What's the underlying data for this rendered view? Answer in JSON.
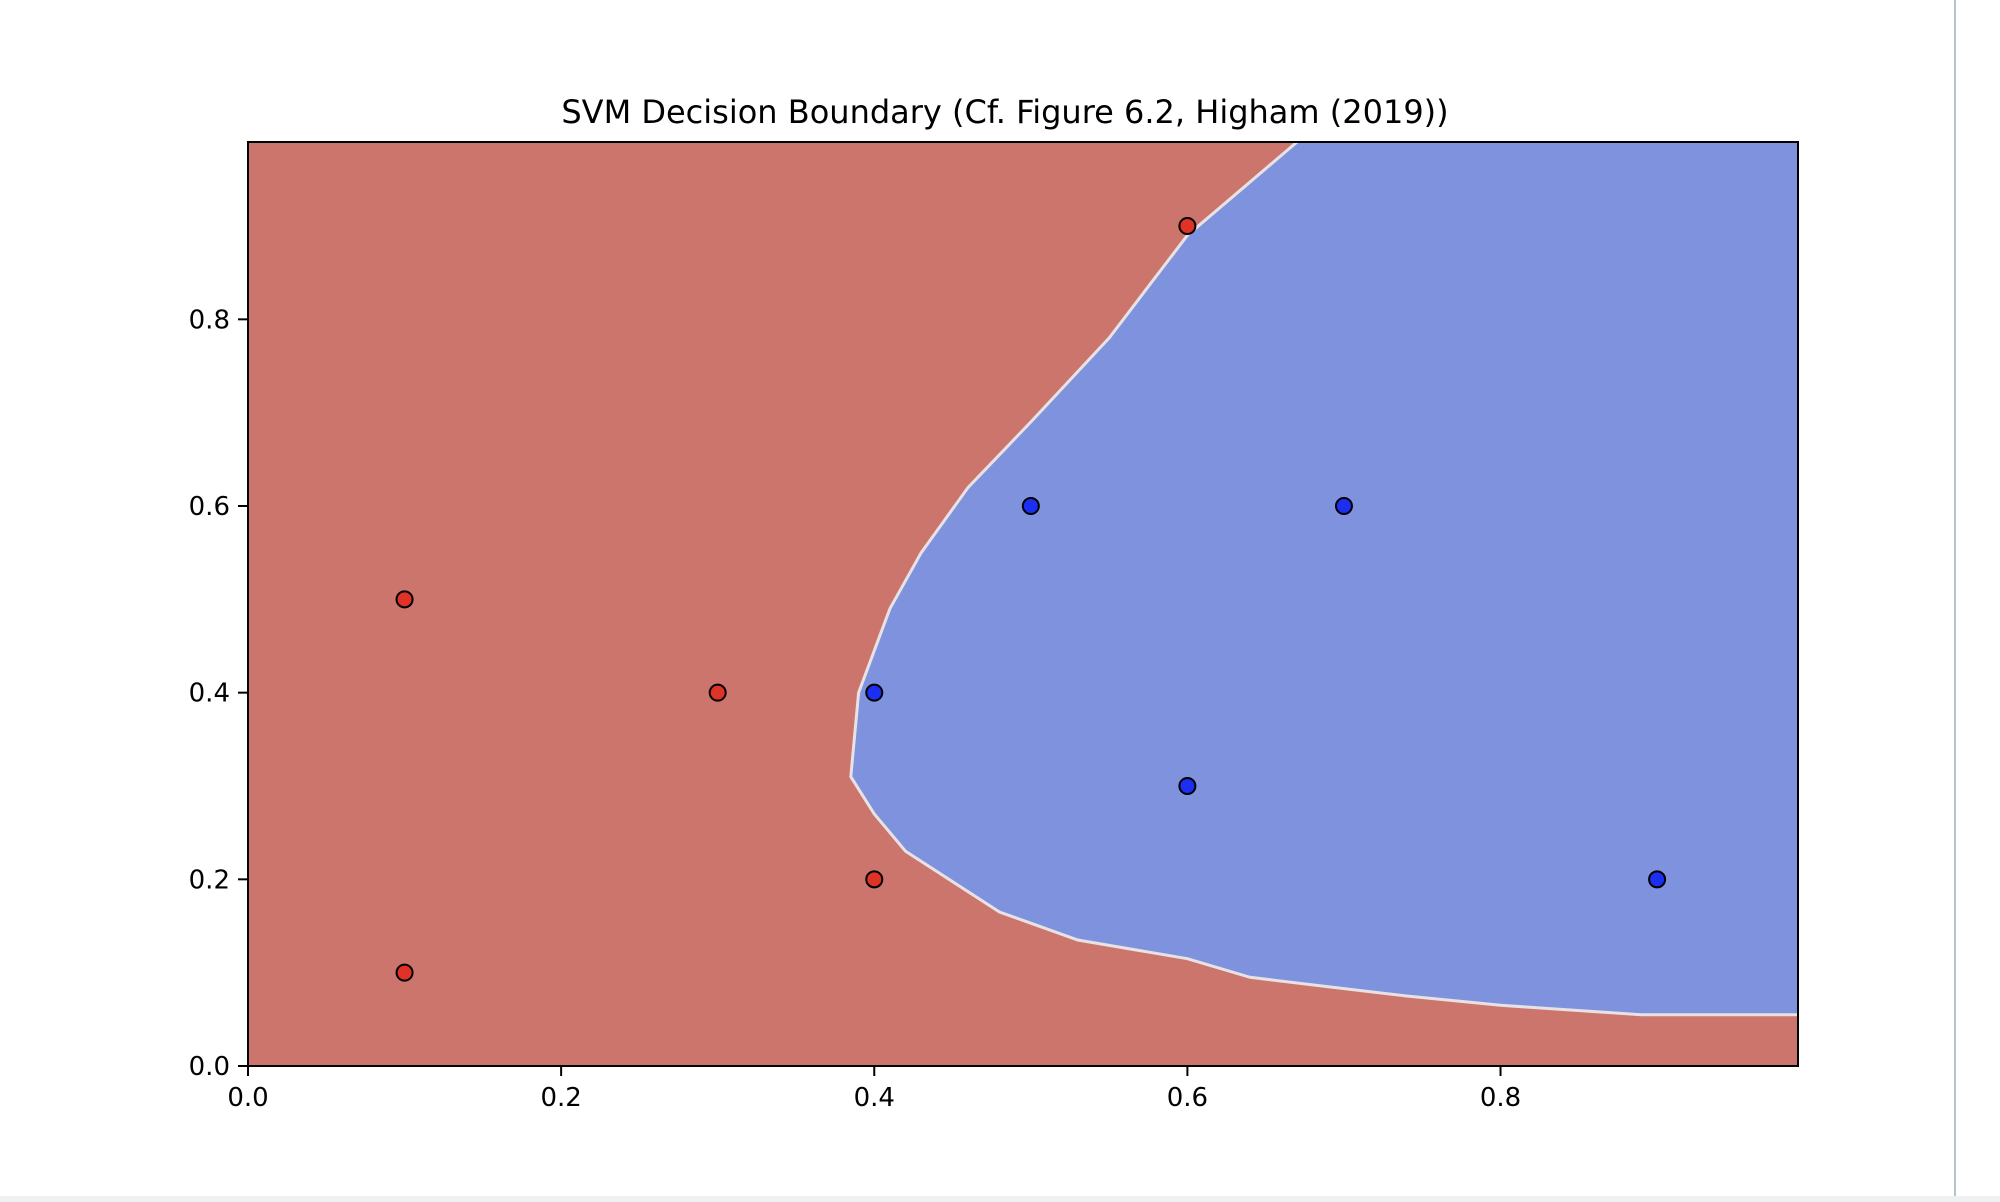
{
  "chart_data": {
    "type": "scatter",
    "title": "SVM Decision Boundary (Cf. Figure 6.2, Higham (2019))",
    "xlabel": "",
    "ylabel": "",
    "xlim": [
      0,
      0.99
    ],
    "ylim": [
      0,
      0.99
    ],
    "x_ticks": [
      "0.0",
      "0.2",
      "0.4",
      "0.6",
      "0.8"
    ],
    "y_ticks": [
      "0.0",
      "0.2",
      "0.4",
      "0.6",
      "0.8"
    ],
    "x_tick_values": [
      0,
      0.2,
      0.4,
      0.6,
      0.8
    ],
    "y_tick_values": [
      0,
      0.2,
      0.4,
      0.6,
      0.8
    ],
    "grid": false,
    "region_colors": {
      "red": "#cb756c",
      "blue": "#7f92de"
    },
    "series": [
      {
        "color": "#e03328",
        "points": [
          {
            "x": 0.1,
            "y": 0.1
          },
          {
            "x": 0.1,
            "y": 0.5
          },
          {
            "x": 0.3,
            "y": 0.4
          },
          {
            "x": 0.4,
            "y": 0.2
          },
          {
            "x": 0.6,
            "y": 0.9
          }
        ]
      },
      {
        "color": "#1c2ff0",
        "points": [
          {
            "x": 0.4,
            "y": 0.4
          },
          {
            "x": 0.5,
            "y": 0.6
          },
          {
            "x": 0.6,
            "y": 0.3
          },
          {
            "x": 0.7,
            "y": 0.6
          },
          {
            "x": 0.9,
            "y": 0.2
          }
        ]
      }
    ],
    "decision_boundary": [
      [
        0.67,
        0.99
      ],
      [
        0.6,
        0.89
      ],
      [
        0.55,
        0.78
      ],
      [
        0.5,
        0.69
      ],
      [
        0.46,
        0.62
      ],
      [
        0.43,
        0.55
      ],
      [
        0.41,
        0.49
      ],
      [
        0.39,
        0.4
      ],
      [
        0.385,
        0.31
      ],
      [
        0.4,
        0.27
      ],
      [
        0.42,
        0.23
      ],
      [
        0.48,
        0.165
      ],
      [
        0.53,
        0.135
      ],
      [
        0.6,
        0.115
      ],
      [
        0.64,
        0.095
      ],
      [
        0.69,
        0.085
      ],
      [
        0.74,
        0.075
      ],
      [
        0.8,
        0.065
      ],
      [
        0.89,
        0.055
      ],
      [
        0.99,
        0.055
      ]
    ]
  }
}
